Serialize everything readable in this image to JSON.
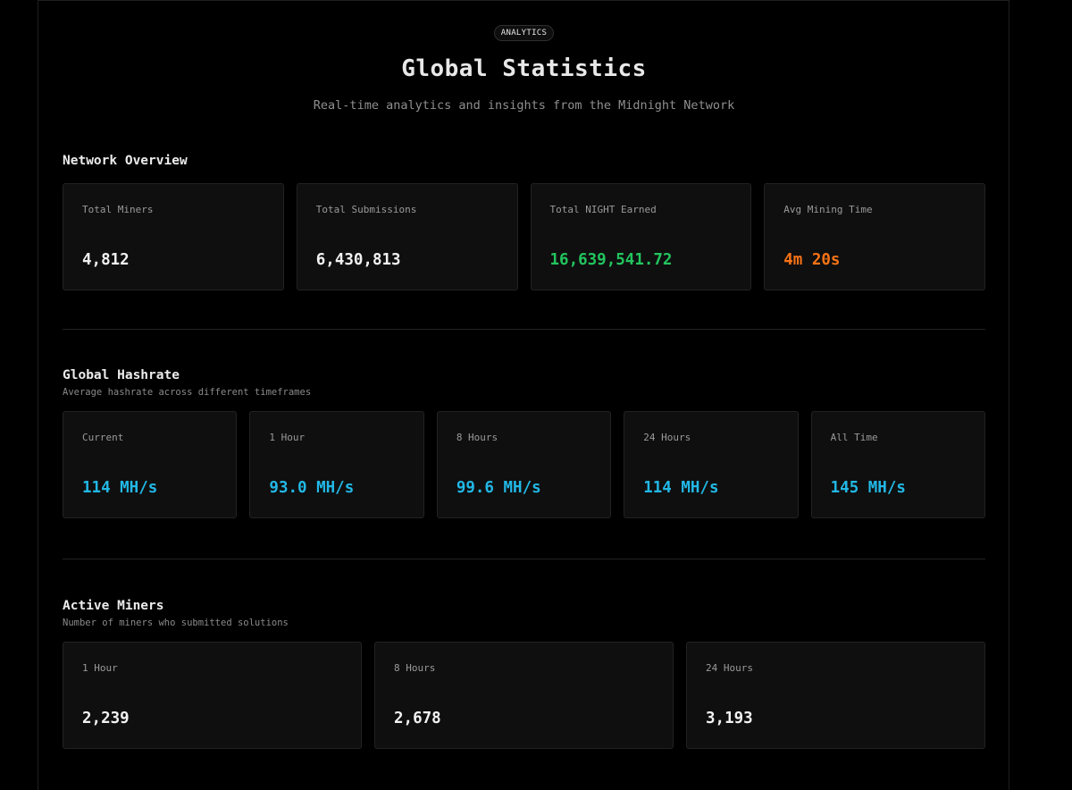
{
  "header": {
    "badge": "ANALYTICS",
    "title": "Global Statistics",
    "subtitle": "Real-time analytics and insights from the Midnight Network"
  },
  "network_overview": {
    "title": "Network Overview",
    "cards": [
      {
        "label": "Total Miners",
        "value": "4,812",
        "color": "#f2f2f2"
      },
      {
        "label": "Total Submissions",
        "value": "6,430,813",
        "color": "#f2f2f2"
      },
      {
        "label": "Total NIGHT Earned",
        "value": "16,639,541.72",
        "color": "#22c55e"
      },
      {
        "label": "Avg Mining Time",
        "value": "4m 20s",
        "color": "#f97316"
      }
    ]
  },
  "global_hashrate": {
    "title": "Global Hashrate",
    "description": "Average hashrate across different timeframes",
    "cards": [
      {
        "label": "Current",
        "value": "114 MH/s",
        "color": "#22b8e6"
      },
      {
        "label": "1 Hour",
        "value": "93.0 MH/s",
        "color": "#22b8e6"
      },
      {
        "label": "8 Hours",
        "value": "99.6 MH/s",
        "color": "#22b8e6"
      },
      {
        "label": "24 Hours",
        "value": "114 MH/s",
        "color": "#22b8e6"
      },
      {
        "label": "All Time",
        "value": "145 MH/s",
        "color": "#22b8e6"
      }
    ]
  },
  "active_miners": {
    "title": "Active Miners",
    "description": "Number of miners who submitted solutions",
    "cards": [
      {
        "label": "1 Hour",
        "value": "2,239",
        "color": "#f2f2f2"
      },
      {
        "label": "8 Hours",
        "value": "2,678",
        "color": "#f2f2f2"
      },
      {
        "label": "24 Hours",
        "value": "3,193",
        "color": "#f2f2f2"
      }
    ]
  }
}
